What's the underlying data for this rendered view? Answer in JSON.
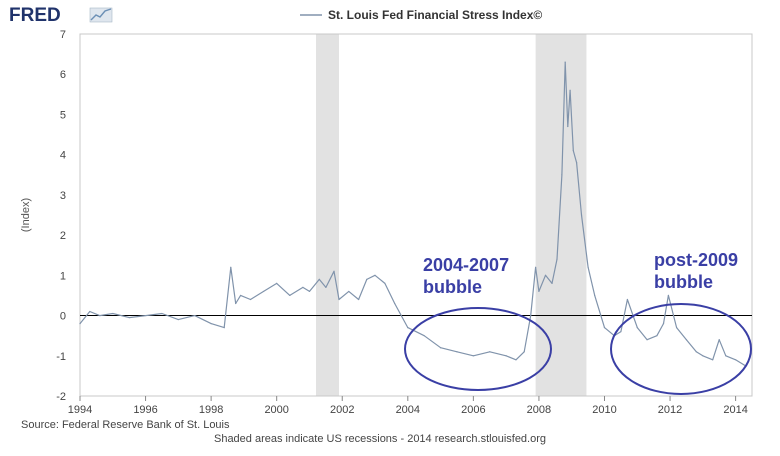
{
  "logo": {
    "text": "FRED"
  },
  "chart_data": {
    "type": "line",
    "title": "",
    "xlabel": "",
    "ylabel": "(Index)",
    "xlim": [
      1994.0,
      2014.5
    ],
    "ylim": [
      -2,
      7
    ],
    "x_ticks": [
      1994,
      1996,
      1998,
      2000,
      2002,
      2004,
      2006,
      2008,
      2010,
      2012,
      2014
    ],
    "y_ticks": [
      -2,
      -1,
      0,
      1,
      2,
      3,
      4,
      5,
      6,
      7
    ],
    "grid": false,
    "legend": {
      "position": "top-center",
      "entries": [
        "St. Louis Fed Financial Stress Index©"
      ]
    },
    "recessions": [
      [
        2001.2,
        2001.9
      ],
      [
        2007.9,
        2009.45
      ]
    ],
    "series": [
      {
        "name": "St. Louis Fed Financial Stress Index©",
        "color": "#8093ab",
        "x": [
          1994.0,
          1994.3,
          1994.6,
          1995.0,
          1995.5,
          1996.0,
          1996.5,
          1997.0,
          1997.5,
          1998.0,
          1998.4,
          1998.6,
          1998.75,
          1998.9,
          1999.2,
          1999.6,
          2000.0,
          2000.4,
          2000.8,
          2001.0,
          2001.3,
          2001.5,
          2001.75,
          2001.9,
          2002.2,
          2002.5,
          2002.75,
          2003.0,
          2003.3,
          2003.6,
          2004.0,
          2004.5,
          2005.0,
          2005.5,
          2006.0,
          2006.5,
          2007.0,
          2007.3,
          2007.55,
          2007.75,
          2007.9,
          2008.0,
          2008.2,
          2008.4,
          2008.55,
          2008.7,
          2008.8,
          2008.88,
          2008.95,
          2009.05,
          2009.15,
          2009.3,
          2009.5,
          2009.7,
          2010.0,
          2010.3,
          2010.5,
          2010.7,
          2011.0,
          2011.3,
          2011.6,
          2011.8,
          2011.95,
          2012.2,
          2012.5,
          2012.8,
          2013.0,
          2013.3,
          2013.5,
          2013.7,
          2014.0,
          2014.3
        ],
        "y": [
          -0.2,
          0.1,
          0.0,
          0.05,
          -0.05,
          0.0,
          0.05,
          -0.1,
          0.0,
          -0.2,
          -0.3,
          1.2,
          0.3,
          0.5,
          0.4,
          0.6,
          0.8,
          0.5,
          0.7,
          0.6,
          0.9,
          0.7,
          1.1,
          0.4,
          0.6,
          0.4,
          0.9,
          1.0,
          0.8,
          0.3,
          -0.3,
          -0.5,
          -0.8,
          -0.9,
          -1.0,
          -0.9,
          -1.0,
          -1.1,
          -0.9,
          0.0,
          1.2,
          0.6,
          1.0,
          0.8,
          1.4,
          3.5,
          6.3,
          4.7,
          5.6,
          4.1,
          3.8,
          2.5,
          1.2,
          0.5,
          -0.3,
          -0.5,
          -0.4,
          0.4,
          -0.3,
          -0.6,
          -0.5,
          -0.2,
          0.5,
          -0.3,
          -0.6,
          -0.9,
          -1.0,
          -1.1,
          -0.6,
          -1.0,
          -1.1,
          -1.25
        ]
      }
    ],
    "annotations": [
      {
        "text": "2004-2007 bubble",
        "lines": [
          "2004-2007",
          "bubble"
        ],
        "color": "#3a3fa5"
      },
      {
        "text": "post-2009 bubble",
        "lines": [
          "post-2009",
          "bubble"
        ],
        "color": "#3a3fa5"
      }
    ],
    "footer": {
      "source": "Source: Federal Reserve Bank of St. Louis",
      "note": "Shaded areas indicate US recessions - 2014 research.stlouisfed.org"
    }
  }
}
